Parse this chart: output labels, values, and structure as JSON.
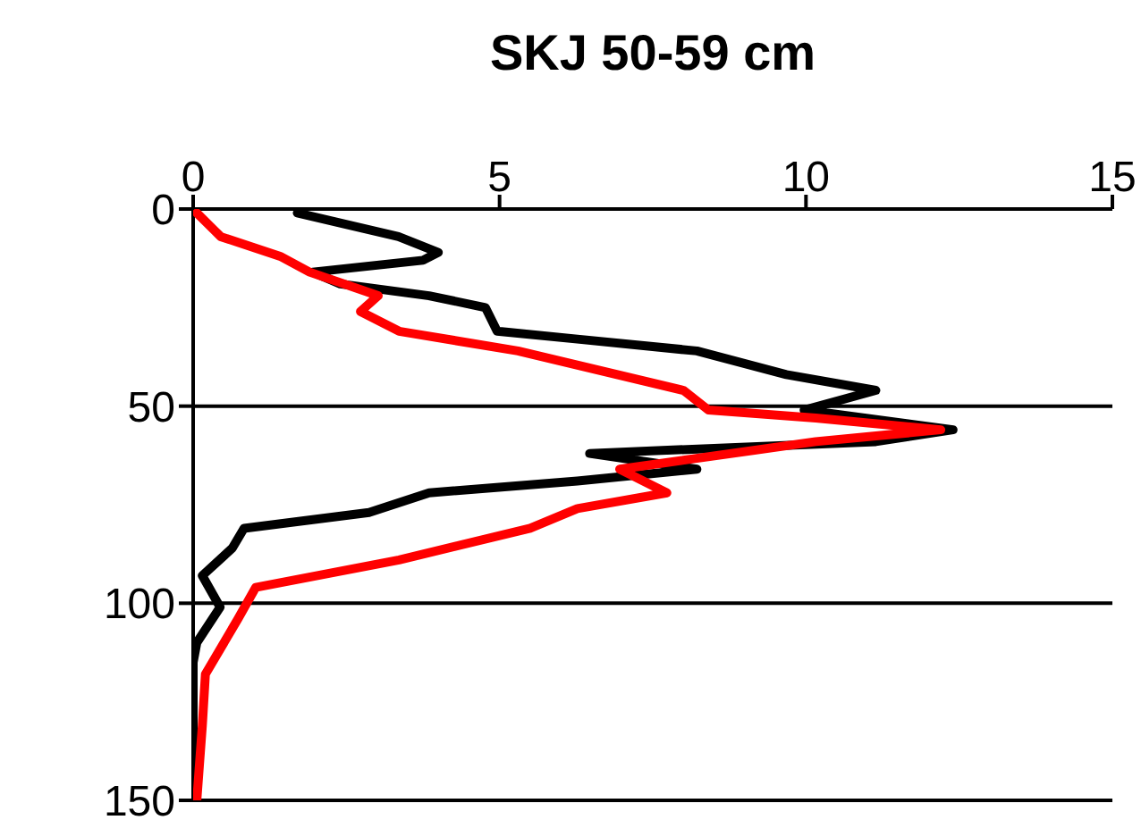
{
  "chart_data": {
    "type": "line",
    "title": "SKJ 50-59 cm",
    "xlim": [
      0,
      15
    ],
    "xticks": [
      0,
      5,
      10,
      15
    ],
    "ylim": [
      150,
      0
    ],
    "yticks": [
      0,
      50,
      100,
      150
    ],
    "grid": "y",
    "marker": "none",
    "line_style": "solid",
    "series": [
      {
        "color": "#000000",
        "x": [
          1.7,
          3.35,
          4.0,
          3.75,
          1.95,
          2.4,
          3.85,
          4.77,
          4.96,
          6.27,
          8.22,
          9.68,
          11.14,
          9.97,
          12.4,
          11.14,
          6.47,
          8.22,
          6.27,
          3.85,
          2.87,
          0.83,
          0.64,
          0.15,
          0.44,
          0.06,
          0,
          0
        ],
        "values": [
          1,
          7,
          11,
          13,
          16,
          19,
          22,
          25,
          31,
          33,
          36,
          42,
          46,
          51,
          56,
          59,
          62,
          66,
          69,
          72,
          77,
          81,
          86,
          93,
          101,
          110,
          115,
          150
        ]
      },
      {
        "color": "#ff0000",
        "x": [
          0.06,
          0.45,
          1.42,
          1.9,
          3.02,
          2.73,
          3.36,
          5.3,
          8.0,
          8.41,
          10.16,
          12.2,
          10.16,
          6.96,
          7.73,
          6.27,
          5.5,
          3.36,
          1.02,
          0.73,
          0.2,
          0.15,
          0.06
        ],
        "values": [
          1,
          7,
          12,
          16,
          22,
          26,
          31,
          36,
          46,
          51,
          53,
          56,
          59,
          66,
          72,
          76,
          81,
          89,
          96,
          104,
          118,
          131,
          150
        ]
      }
    ]
  }
}
